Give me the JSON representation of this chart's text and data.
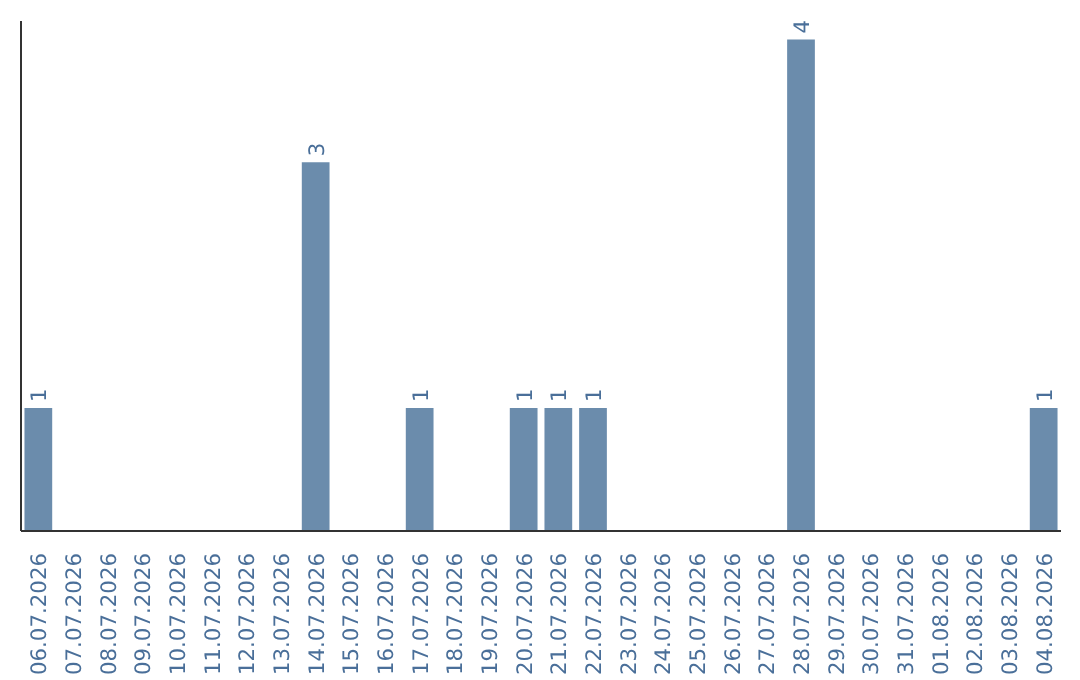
{
  "chart_data": {
    "type": "bar",
    "categories": [
      "06.07.2026",
      "07.07.2026",
      "08.07.2026",
      "09.07.2026",
      "10.07.2026",
      "11.07.2026",
      "12.07.2026",
      "13.07.2026",
      "14.07.2026",
      "15.07.2026",
      "16.07.2026",
      "17.07.2026",
      "18.07.2026",
      "19.07.2026",
      "20.07.2026",
      "21.07.2026",
      "22.07.2026",
      "23.07.2026",
      "24.07.2026",
      "25.07.2026",
      "26.07.2026",
      "27.07.2026",
      "28.07.2026",
      "29.07.2026",
      "30.07.2026",
      "31.07.2026",
      "01.08.2026",
      "02.08.2026",
      "03.08.2026",
      "04.08.2026"
    ],
    "values": [
      1,
      0,
      0,
      0,
      0,
      0,
      0,
      0,
      3,
      0,
      0,
      1,
      0,
      0,
      1,
      1,
      1,
      0,
      0,
      0,
      0,
      0,
      4,
      0,
      0,
      0,
      0,
      0,
      0,
      1
    ],
    "value_labels": [
      "1",
      null,
      null,
      null,
      null,
      null,
      null,
      null,
      "3",
      null,
      null,
      "1",
      null,
      null,
      "1",
      "1",
      "1",
      null,
      null,
      null,
      null,
      null,
      "4",
      null,
      null,
      null,
      null,
      null,
      null,
      "1"
    ],
    "color": "#6b8cac",
    "ylim": [
      0,
      4.15
    ],
    "grid": false,
    "tick_labels": "x"
  }
}
